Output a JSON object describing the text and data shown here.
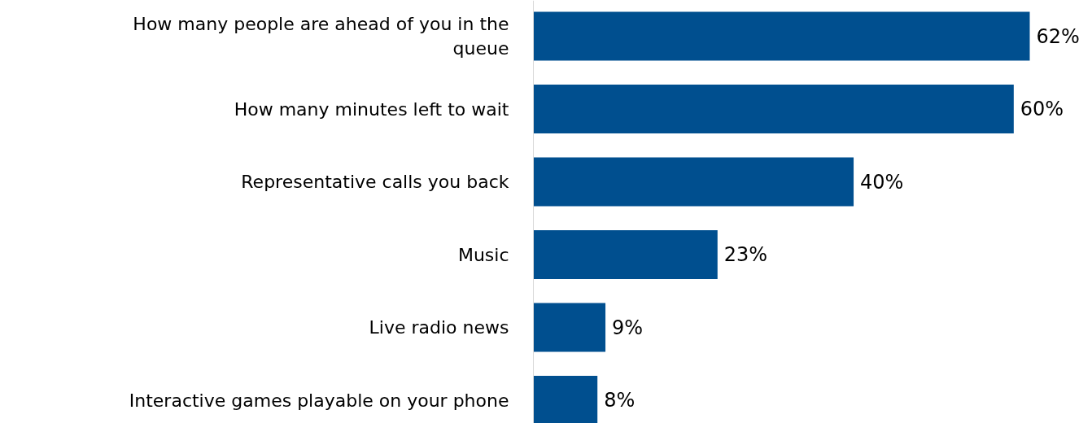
{
  "chart_data": {
    "type": "bar",
    "orientation": "horizontal",
    "categories": [
      "How many people are ahead of you in the queue",
      "How many minutes left to wait",
      "Representative calls you back",
      "Music",
      "Live radio news",
      "Interactive games playable on your phone"
    ],
    "values": [
      62,
      60,
      40,
      23,
      9,
      8
    ],
    "value_labels": [
      "62%",
      "60%",
      "40%",
      "23%",
      "9%",
      "8%"
    ],
    "color": "#004f8f"
  }
}
